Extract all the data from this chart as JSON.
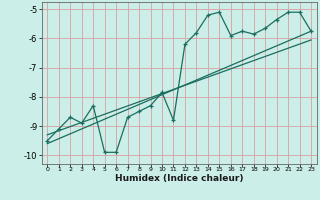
{
  "xlabel": "Humidex (Indice chaleur)",
  "bg_color": "#cceee8",
  "grid_color": "#d4aaaa",
  "line_color": "#1a6e60",
  "xlim": [
    -0.5,
    23.5
  ],
  "ylim": [
    -10.3,
    -4.75
  ],
  "xticks": [
    0,
    1,
    2,
    3,
    4,
    5,
    6,
    7,
    8,
    9,
    10,
    11,
    12,
    13,
    14,
    15,
    16,
    17,
    18,
    19,
    20,
    21,
    22,
    23
  ],
  "yticks": [
    -10,
    -9,
    -8,
    -7,
    -6,
    -5
  ],
  "data_x": [
    0,
    1,
    2,
    3,
    4,
    5,
    6,
    7,
    8,
    9,
    10,
    11,
    12,
    13,
    14,
    15,
    16,
    17,
    18,
    19,
    20,
    21,
    22,
    23
  ],
  "data_y": [
    -9.5,
    -9.1,
    -8.7,
    -8.9,
    -8.3,
    -9.9,
    -9.9,
    -8.7,
    -8.5,
    -8.3,
    -7.85,
    -8.8,
    -6.2,
    -5.8,
    -5.2,
    -5.1,
    -5.9,
    -5.75,
    -5.85,
    -5.65,
    -5.35,
    -5.1,
    -5.1,
    -5.75
  ],
  "trend1_x": [
    0,
    23
  ],
  "trend1_y": [
    -9.6,
    -5.75
  ],
  "trend2_x": [
    0,
    23
  ],
  "trend2_y": [
    -9.3,
    -6.05
  ]
}
